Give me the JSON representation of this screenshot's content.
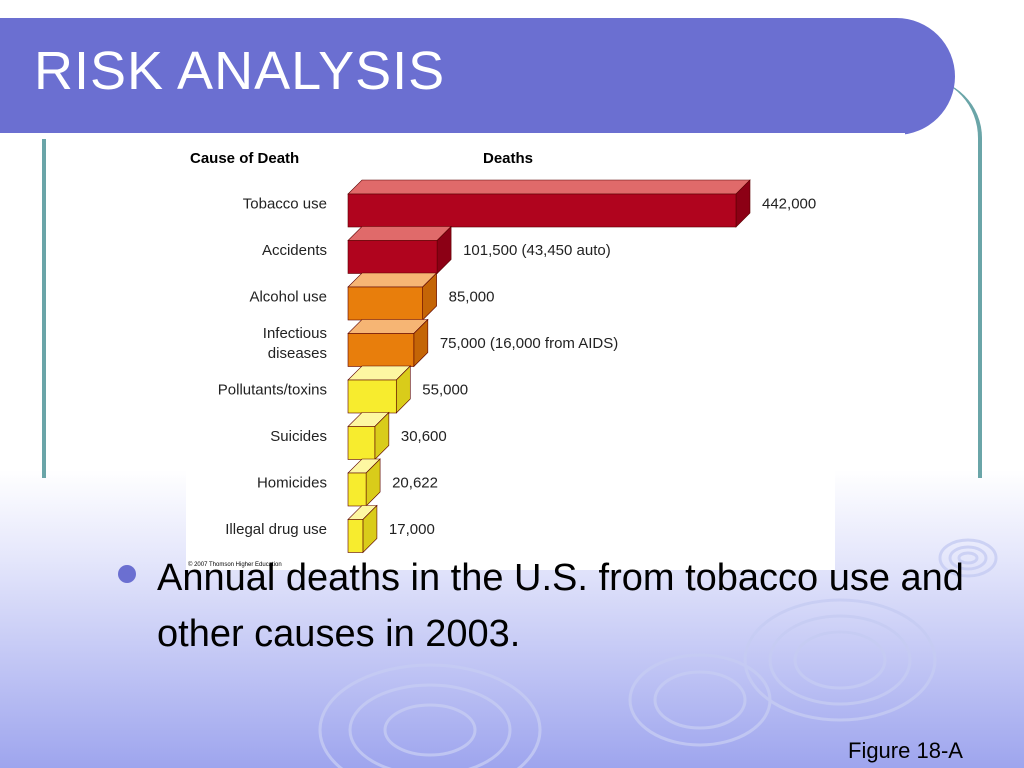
{
  "slide": {
    "title": "RISK ANALYSIS",
    "bullet": "Annual deaths in the U.S. from tobacco use and other causes in 2003.",
    "figure_label": "Figure 18-A"
  },
  "colors": {
    "title_bar": "#6b6fd1",
    "frame": "#6aa5a8"
  },
  "chart_data": {
    "type": "bar",
    "orientation": "horizontal",
    "style": "3d",
    "column_headers": [
      "Cause of Death",
      "Deaths"
    ],
    "categories": [
      "Tobacco use",
      "Accidents",
      "Alcohol use",
      "Infectious diseases",
      "Pollutants/toxins",
      "Suicides",
      "Homicides",
      "Illegal drug use"
    ],
    "category_lines": [
      [
        "Tobacco use"
      ],
      [
        "Accidents"
      ],
      [
        "Alcohol use"
      ],
      [
        "Infectious",
        "diseases"
      ],
      [
        "Pollutants/toxins"
      ],
      [
        "Suicides"
      ],
      [
        "Homicides"
      ],
      [
        "Illegal drug use"
      ]
    ],
    "values": [
      442000,
      101500,
      85000,
      75000,
      55000,
      30600,
      20622,
      17000
    ],
    "value_labels": [
      "442,000",
      "101,500 (43,450 auto)",
      "85,000",
      "75,000 (16,000 from AIDS)",
      "55,000",
      "30,600",
      "20,622",
      "17,000"
    ],
    "bar_colors": [
      {
        "front": "#b0041e",
        "top": "#e06a6a",
        "side": "#8c0015"
      },
      {
        "front": "#b0041e",
        "top": "#e06a6a",
        "side": "#8c0015"
      },
      {
        "front": "#e87e0c",
        "top": "#f6b574",
        "side": "#c46506"
      },
      {
        "front": "#e87e0c",
        "top": "#f6b574",
        "side": "#c46506"
      },
      {
        "front": "#f7ec2e",
        "top": "#fdf7a2",
        "side": "#d9cc1a"
      },
      {
        "front": "#f7ec2e",
        "top": "#fdf7a2",
        "side": "#d9cc1a"
      },
      {
        "front": "#f7ec2e",
        "top": "#fdf7a2",
        "side": "#d9cc1a"
      },
      {
        "front": "#f7ec2e",
        "top": "#fdf7a2",
        "side": "#d9cc1a"
      }
    ],
    "credit": "© 2007 Thomson Higher Education"
  }
}
